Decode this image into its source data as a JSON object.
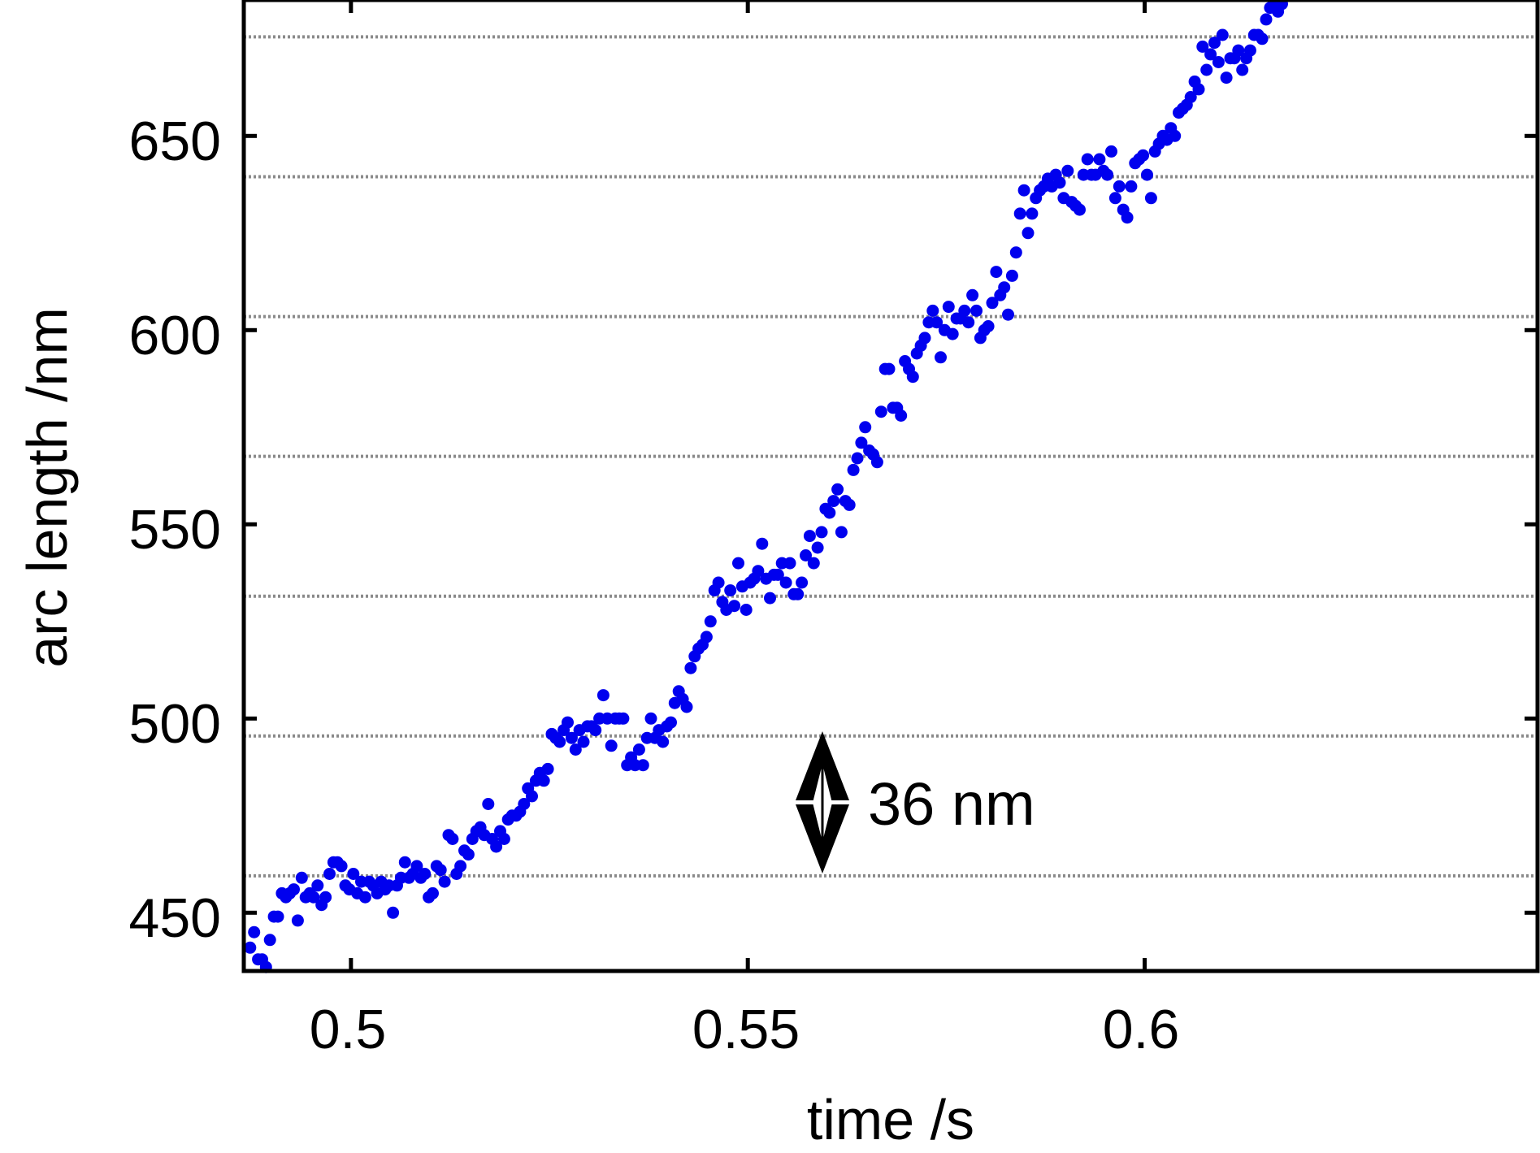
{
  "chart_data": {
    "type": "scatter",
    "xlabel": "time /s",
    "ylabel": "arc length /nm",
    "xlim": [
      0.4865,
      0.6495
    ],
    "ylim": [
      435,
      685
    ],
    "xticks": [
      0.5,
      0.55,
      0.6
    ],
    "xtick_labels": [
      "0.5",
      "0.55",
      "0.6"
    ],
    "yticks": [
      450,
      500,
      550,
      600,
      650
    ],
    "ytick_labels": [
      "450",
      "500",
      "550",
      "600",
      "650"
    ],
    "grid": {
      "axis": "y",
      "style": "dotted",
      "values": [
        459.5,
        495.5,
        531.5,
        567.5,
        603.5,
        639.5,
        675.5
      ]
    },
    "marker_color": "#0000ee",
    "annotation": {
      "text": "36 nm",
      "x": 0.5598,
      "y_from": 460,
      "y_to": 496
    },
    "points": [
      [
        0.4873,
        441
      ],
      [
        0.4878,
        445
      ],
      [
        0.4883,
        438
      ],
      [
        0.4888,
        438
      ],
      [
        0.4893,
        436
      ],
      [
        0.4898,
        443
      ],
      [
        0.4903,
        449
      ],
      [
        0.4908,
        449
      ],
      [
        0.4913,
        455
      ],
      [
        0.4918,
        454
      ],
      [
        0.4923,
        455
      ],
      [
        0.4928,
        456
      ],
      [
        0.4933,
        448
      ],
      [
        0.4938,
        459
      ],
      [
        0.4943,
        454
      ],
      [
        0.4948,
        455
      ],
      [
        0.4953,
        454
      ],
      [
        0.4958,
        457
      ],
      [
        0.4963,
        452
      ],
      [
        0.4968,
        454
      ],
      [
        0.4973,
        460
      ],
      [
        0.4978,
        463
      ],
      [
        0.4983,
        463
      ],
      [
        0.4988,
        462
      ],
      [
        0.4993,
        457
      ],
      [
        0.4998,
        456
      ],
      [
        0.5003,
        460
      ],
      [
        0.5008,
        455
      ],
      [
        0.5013,
        458
      ],
      [
        0.5018,
        454
      ],
      [
        0.5023,
        458
      ],
      [
        0.5028,
        457
      ],
      [
        0.5033,
        455
      ],
      [
        0.5038,
        458
      ],
      [
        0.5043,
        456
      ],
      [
        0.5048,
        457
      ],
      [
        0.5053,
        450
      ],
      [
        0.5058,
        457
      ],
      [
        0.5063,
        459
      ],
      [
        0.5068,
        463
      ],
      [
        0.5073,
        459
      ],
      [
        0.5078,
        460
      ],
      [
        0.5083,
        462
      ],
      [
        0.5088,
        459
      ],
      [
        0.5093,
        460
      ],
      [
        0.5098,
        454
      ],
      [
        0.5103,
        455
      ],
      [
        0.5108,
        462
      ],
      [
        0.5113,
        461
      ],
      [
        0.5118,
        458
      ],
      [
        0.5123,
        470
      ],
      [
        0.5128,
        469
      ],
      [
        0.5133,
        460
      ],
      [
        0.5138,
        462
      ],
      [
        0.5143,
        466
      ],
      [
        0.5148,
        465
      ],
      [
        0.5153,
        469
      ],
      [
        0.5158,
        471
      ],
      [
        0.5163,
        472
      ],
      [
        0.5168,
        470
      ],
      [
        0.5173,
        478
      ],
      [
        0.5178,
        469
      ],
      [
        0.5183,
        467
      ],
      [
        0.5188,
        471
      ],
      [
        0.5193,
        469
      ],
      [
        0.5198,
        474
      ],
      [
        0.5203,
        475
      ],
      [
        0.5208,
        475
      ],
      [
        0.5213,
        476
      ],
      [
        0.5218,
        478
      ],
      [
        0.5223,
        482
      ],
      [
        0.5228,
        480
      ],
      [
        0.5233,
        484
      ],
      [
        0.5238,
        486
      ],
      [
        0.5243,
        484
      ],
      [
        0.5248,
        487
      ],
      [
        0.5253,
        496
      ],
      [
        0.5258,
        495
      ],
      [
        0.5263,
        494
      ],
      [
        0.5268,
        497
      ],
      [
        0.5273,
        499
      ],
      [
        0.5278,
        495
      ],
      [
        0.5283,
        492
      ],
      [
        0.5288,
        497
      ],
      [
        0.5293,
        494
      ],
      [
        0.5298,
        498
      ],
      [
        0.5303,
        498
      ],
      [
        0.5308,
        497
      ],
      [
        0.5313,
        500
      ],
      [
        0.5318,
        506
      ],
      [
        0.5323,
        500
      ],
      [
        0.5328,
        493
      ],
      [
        0.5333,
        500
      ],
      [
        0.5338,
        500
      ],
      [
        0.5343,
        500
      ],
      [
        0.5348,
        488
      ],
      [
        0.5353,
        490
      ],
      [
        0.5358,
        488
      ],
      [
        0.5363,
        492
      ],
      [
        0.5368,
        488
      ],
      [
        0.5373,
        495
      ],
      [
        0.5378,
        500
      ],
      [
        0.5383,
        495
      ],
      [
        0.5388,
        497
      ],
      [
        0.5393,
        494
      ],
      [
        0.5398,
        498
      ],
      [
        0.5403,
        499
      ],
      [
        0.5408,
        504
      ],
      [
        0.5413,
        507
      ],
      [
        0.5418,
        505
      ],
      [
        0.5423,
        503
      ],
      [
        0.5428,
        513
      ],
      [
        0.5433,
        516
      ],
      [
        0.5438,
        518
      ],
      [
        0.5443,
        519
      ],
      [
        0.5448,
        521
      ],
      [
        0.5453,
        525
      ],
      [
        0.5458,
        533
      ],
      [
        0.5463,
        535
      ],
      [
        0.5468,
        530
      ],
      [
        0.5473,
        528
      ],
      [
        0.5478,
        533
      ],
      [
        0.5483,
        529
      ],
      [
        0.5488,
        540
      ],
      [
        0.5493,
        534
      ],
      [
        0.5498,
        528
      ],
      [
        0.5503,
        535
      ],
      [
        0.5508,
        536
      ],
      [
        0.5513,
        538
      ],
      [
        0.5518,
        545
      ],
      [
        0.5523,
        536
      ],
      [
        0.5528,
        531
      ],
      [
        0.5533,
        537
      ],
      [
        0.5538,
        537
      ],
      [
        0.5543,
        540
      ],
      [
        0.5548,
        535
      ],
      [
        0.5553,
        540
      ],
      [
        0.5558,
        532
      ],
      [
        0.5563,
        532
      ],
      [
        0.5568,
        535
      ],
      [
        0.5573,
        542
      ],
      [
        0.5578,
        547
      ],
      [
        0.5583,
        540
      ],
      [
        0.5588,
        544
      ],
      [
        0.5593,
        548
      ],
      [
        0.5598,
        554
      ],
      [
        0.5603,
        553
      ],
      [
        0.5608,
        556
      ],
      [
        0.5613,
        559
      ],
      [
        0.5618,
        548
      ],
      [
        0.5623,
        556
      ],
      [
        0.5628,
        555
      ],
      [
        0.5633,
        564
      ],
      [
        0.5638,
        567
      ],
      [
        0.5643,
        571
      ],
      [
        0.5648,
        575
      ],
      [
        0.5653,
        569
      ],
      [
        0.5658,
        568
      ],
      [
        0.5663,
        566
      ],
      [
        0.5668,
        579
      ],
      [
        0.5673,
        590
      ],
      [
        0.5678,
        590
      ],
      [
        0.5683,
        580
      ],
      [
        0.5688,
        580
      ],
      [
        0.5693,
        578
      ],
      [
        0.5698,
        592
      ],
      [
        0.5703,
        590
      ],
      [
        0.5708,
        588
      ],
      [
        0.5713,
        594
      ],
      [
        0.5718,
        596
      ],
      [
        0.5723,
        598
      ],
      [
        0.5728,
        602
      ],
      [
        0.5733,
        605
      ],
      [
        0.5738,
        602
      ],
      [
        0.5743,
        593
      ],
      [
        0.5748,
        600
      ],
      [
        0.5753,
        606
      ],
      [
        0.5758,
        599
      ],
      [
        0.5763,
        603
      ],
      [
        0.5768,
        603
      ],
      [
        0.5773,
        605
      ],
      [
        0.5778,
        602
      ],
      [
        0.5783,
        609
      ],
      [
        0.5788,
        605
      ],
      [
        0.5793,
        598
      ],
      [
        0.5798,
        600
      ],
      [
        0.5803,
        601
      ],
      [
        0.5808,
        607
      ],
      [
        0.5813,
        615
      ],
      [
        0.5818,
        609
      ],
      [
        0.5823,
        611
      ],
      [
        0.5828,
        604
      ],
      [
        0.5833,
        614
      ],
      [
        0.5838,
        620
      ],
      [
        0.5843,
        630
      ],
      [
        0.5848,
        636
      ],
      [
        0.5853,
        625
      ],
      [
        0.5858,
        630
      ],
      [
        0.5863,
        634
      ],
      [
        0.5868,
        636
      ],
      [
        0.5873,
        637
      ],
      [
        0.5878,
        639
      ],
      [
        0.5883,
        637
      ],
      [
        0.5888,
        640
      ],
      [
        0.5893,
        638
      ],
      [
        0.5898,
        634
      ],
      [
        0.5903,
        641
      ],
      [
        0.5908,
        633
      ],
      [
        0.5913,
        632
      ],
      [
        0.5918,
        631
      ],
      [
        0.5923,
        640
      ],
      [
        0.5928,
        644
      ],
      [
        0.5933,
        640
      ],
      [
        0.5938,
        640
      ],
      [
        0.5943,
        644
      ],
      [
        0.5948,
        641
      ],
      [
        0.5953,
        640
      ],
      [
        0.5958,
        646
      ],
      [
        0.5963,
        634
      ],
      [
        0.5968,
        637
      ],
      [
        0.5973,
        631
      ],
      [
        0.5978,
        629
      ],
      [
        0.5983,
        637
      ],
      [
        0.5988,
        643
      ],
      [
        0.5993,
        644
      ],
      [
        0.5998,
        645
      ],
      [
        0.6003,
        640
      ],
      [
        0.6008,
        634
      ],
      [
        0.6013,
        646
      ],
      [
        0.6018,
        648
      ],
      [
        0.6023,
        650
      ],
      [
        0.6028,
        649
      ],
      [
        0.6033,
        652
      ],
      [
        0.6038,
        650
      ],
      [
        0.6043,
        656
      ],
      [
        0.6048,
        657
      ],
      [
        0.6053,
        658
      ],
      [
        0.6058,
        660
      ],
      [
        0.6063,
        664
      ],
      [
        0.6068,
        662
      ],
      [
        0.6073,
        673
      ],
      [
        0.6078,
        667
      ],
      [
        0.6083,
        671
      ],
      [
        0.6088,
        674
      ],
      [
        0.6093,
        669
      ],
      [
        0.6098,
        676
      ],
      [
        0.6103,
        665
      ],
      [
        0.6108,
        670
      ],
      [
        0.6113,
        670
      ],
      [
        0.6118,
        672
      ],
      [
        0.6123,
        667
      ],
      [
        0.6128,
        670
      ],
      [
        0.6133,
        672
      ],
      [
        0.6138,
        676
      ],
      [
        0.6143,
        676
      ],
      [
        0.6148,
        675
      ],
      [
        0.6153,
        680
      ],
      [
        0.6158,
        683
      ],
      [
        0.6163,
        683
      ],
      [
        0.6168,
        682
      ],
      [
        0.6173,
        684
      ]
    ]
  }
}
